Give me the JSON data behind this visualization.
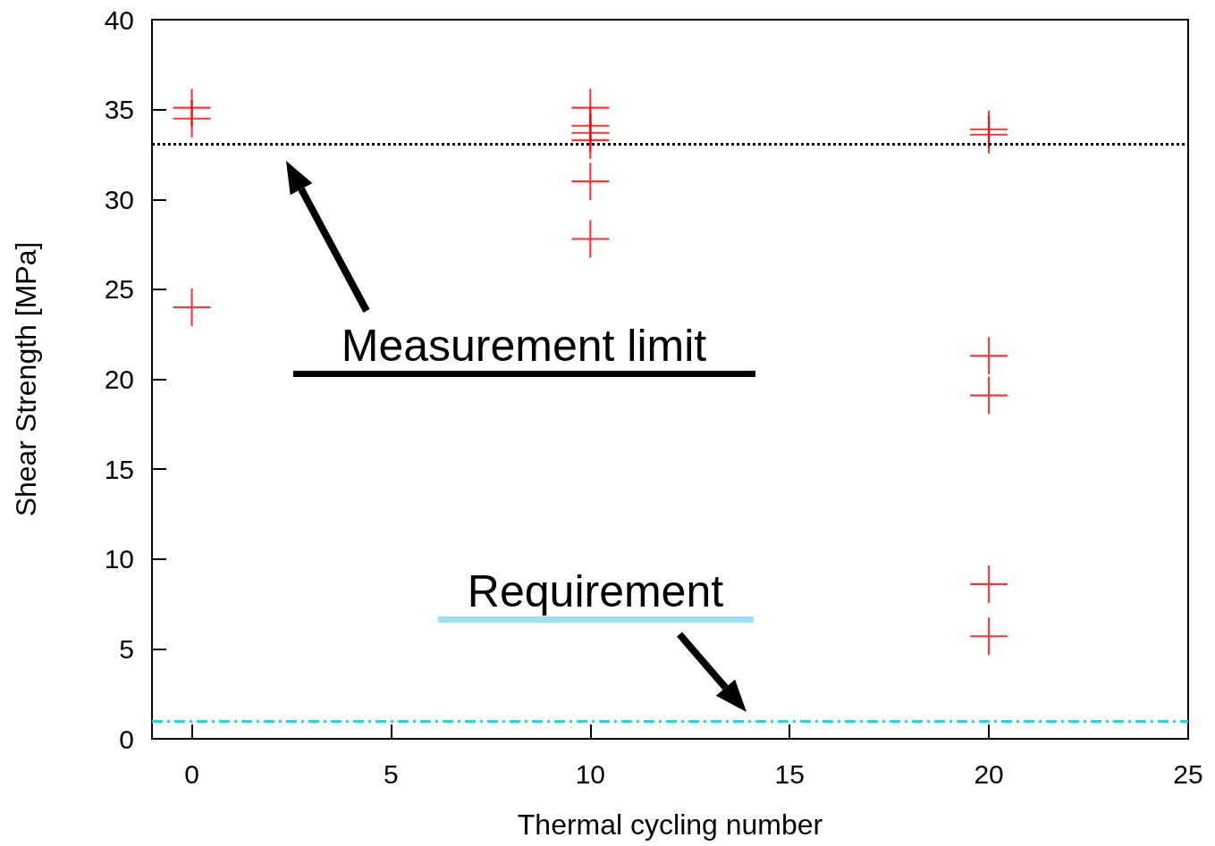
{
  "chart_data": {
    "type": "scatter",
    "xlabel": "Thermal cycling number",
    "ylabel": "Shear Strength [MPa]",
    "x": [
      0,
      0,
      0,
      10,
      10,
      10,
      10,
      10,
      10,
      20,
      20,
      20,
      20,
      20,
      20
    ],
    "series": [
      {
        "color": "#ff0000",
        "values": [
          35.1,
          34.5,
          24.0,
          35.1,
          34.1,
          33.7,
          33.3,
          31.0,
          27.8,
          33.9,
          33.6,
          21.3,
          19.1,
          8.6,
          5.7
        ]
      }
    ],
    "marker": "cross",
    "xlim": [
      -1,
      25
    ],
    "xticks": [
      0,
      5,
      10,
      15,
      20,
      25
    ],
    "ylim": [
      0,
      40
    ],
    "yticks": [
      0,
      5,
      10,
      15,
      20,
      25,
      30,
      35,
      40
    ],
    "grid": false,
    "ref_lines": [
      {
        "axis": "y",
        "value": 33.1,
        "color": "#000000",
        "line_style": "dotted"
      },
      {
        "axis": "y",
        "value": 1.0,
        "color": "#00e5ee",
        "line_style": "dashdot"
      }
    ],
    "annotations": [
      "Measurement limit",
      "Requirement"
    ]
  }
}
